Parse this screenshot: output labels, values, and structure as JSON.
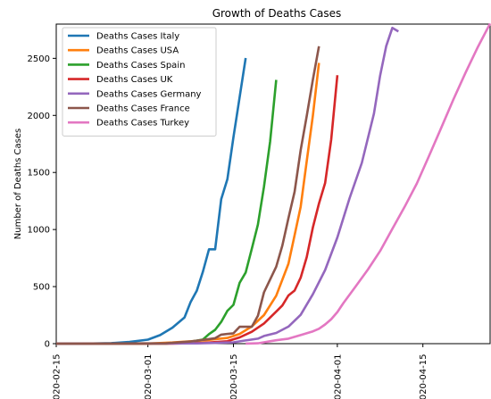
{
  "chart_data": {
    "type": "line",
    "title": "Growth of Deaths Cases",
    "ylabel": "Number of Deaths Cases",
    "xlabel": "",
    "x_type": "date",
    "x_ticks": [
      "2020-02-15",
      "2020-03-01",
      "2020-03-15",
      "2020-04-01",
      "2020-04-15"
    ],
    "x_tick_labels": [
      "2020-02-15",
      "2020-03-01",
      "2020-03-15",
      "2020-04-01",
      "2020-04-15"
    ],
    "xlim": [
      "2020-02-15",
      "2020-04-26"
    ],
    "y_ticks": [
      0,
      500,
      1000,
      1500,
      2000,
      2500
    ],
    "ylim": [
      0,
      2800
    ],
    "grid": false,
    "legend_position": "top-left",
    "series": [
      {
        "name": "Deaths Cases Italy",
        "color": "#1f77b4",
        "points": [
          [
            "2020-02-15",
            0
          ],
          [
            "2020-02-20",
            1
          ],
          [
            "2020-02-24",
            5
          ],
          [
            "2020-02-27",
            15
          ],
          [
            "2020-03-01",
            35
          ],
          [
            "2020-03-03",
            75
          ],
          [
            "2020-03-05",
            140
          ],
          [
            "2020-03-07",
            230
          ],
          [
            "2020-03-08",
            366
          ],
          [
            "2020-03-09",
            463
          ],
          [
            "2020-03-10",
            631
          ],
          [
            "2020-03-11",
            827
          ],
          [
            "2020-03-12",
            827
          ],
          [
            "2020-03-13",
            1266
          ],
          [
            "2020-03-14",
            1441
          ],
          [
            "2020-03-15",
            1809
          ],
          [
            "2020-03-16",
            2158
          ],
          [
            "2020-03-17",
            2503
          ]
        ]
      },
      {
        "name": "Deaths Cases USA",
        "color": "#ff7f0e",
        "points": [
          [
            "2020-02-15",
            0
          ],
          [
            "2020-03-01",
            1
          ],
          [
            "2020-03-05",
            10
          ],
          [
            "2020-03-10",
            28
          ],
          [
            "2020-03-14",
            50
          ],
          [
            "2020-03-16",
            85
          ],
          [
            "2020-03-18",
            150
          ],
          [
            "2020-03-20",
            250
          ],
          [
            "2020-03-22",
            420
          ],
          [
            "2020-03-24",
            700
          ],
          [
            "2020-03-25",
            950
          ],
          [
            "2020-03-26",
            1200
          ],
          [
            "2020-03-27",
            1600
          ],
          [
            "2020-03-28",
            2000
          ],
          [
            "2020-03-29",
            2460
          ]
        ]
      },
      {
        "name": "Deaths Cases Spain",
        "color": "#2ca02c",
        "points": [
          [
            "2020-02-15",
            0
          ],
          [
            "2020-03-04",
            1
          ],
          [
            "2020-03-08",
            17
          ],
          [
            "2020-03-10",
            36
          ],
          [
            "2020-03-11",
            84
          ],
          [
            "2020-03-12",
            121
          ],
          [
            "2020-03-13",
            191
          ],
          [
            "2020-03-14",
            288
          ],
          [
            "2020-03-15",
            340
          ],
          [
            "2020-03-16",
            533
          ],
          [
            "2020-03-17",
            623
          ],
          [
            "2020-03-18",
            830
          ],
          [
            "2020-03-19",
            1043
          ],
          [
            "2020-03-20",
            1375
          ],
          [
            "2020-03-21",
            1772
          ],
          [
            "2020-03-22",
            2311
          ]
        ]
      },
      {
        "name": "Deaths Cases UK",
        "color": "#d62728",
        "points": [
          [
            "2020-02-15",
            0
          ],
          [
            "2020-03-05",
            1
          ],
          [
            "2020-03-10",
            6
          ],
          [
            "2020-03-14",
            21
          ],
          [
            "2020-03-16",
            55
          ],
          [
            "2020-03-18",
            104
          ],
          [
            "2020-03-20",
            177
          ],
          [
            "2020-03-22",
            281
          ],
          [
            "2020-03-23",
            335
          ],
          [
            "2020-03-24",
            422
          ],
          [
            "2020-03-25",
            465
          ],
          [
            "2020-03-26",
            578
          ],
          [
            "2020-03-27",
            759
          ],
          [
            "2020-03-28",
            1019
          ],
          [
            "2020-03-29",
            1228
          ],
          [
            "2020-03-30",
            1408
          ],
          [
            "2020-03-31",
            1789
          ],
          [
            "2020-04-01",
            2352
          ]
        ]
      },
      {
        "name": "Deaths Cases Germany",
        "color": "#9467bd",
        "points": [
          [
            "2020-02-15",
            0
          ],
          [
            "2020-03-09",
            2
          ],
          [
            "2020-03-12",
            6
          ],
          [
            "2020-03-15",
            12
          ],
          [
            "2020-03-17",
            28
          ],
          [
            "2020-03-19",
            44
          ],
          [
            "2020-03-20",
            67
          ],
          [
            "2020-03-22",
            94
          ],
          [
            "2020-03-24",
            149
          ],
          [
            "2020-03-26",
            253
          ],
          [
            "2020-03-28",
            433
          ],
          [
            "2020-03-30",
            645
          ],
          [
            "2020-04-01",
            931
          ],
          [
            "2020-04-03",
            1275
          ],
          [
            "2020-04-05",
            1584
          ],
          [
            "2020-04-07",
            2016
          ],
          [
            "2020-04-08",
            2349
          ],
          [
            "2020-04-09",
            2607
          ],
          [
            "2020-04-10",
            2767
          ],
          [
            "2020-04-11",
            2736
          ]
        ]
      },
      {
        "name": "Deaths Cases France",
        "color": "#8c564b",
        "points": [
          [
            "2020-02-15",
            0
          ],
          [
            "2020-02-29",
            2
          ],
          [
            "2020-03-04",
            4
          ],
          [
            "2020-03-08",
            19
          ],
          [
            "2020-03-10",
            33
          ],
          [
            "2020-03-12",
            48
          ],
          [
            "2020-03-13",
            79
          ],
          [
            "2020-03-15",
            91
          ],
          [
            "2020-03-16",
            148
          ],
          [
            "2020-03-18",
            148
          ],
          [
            "2020-03-19",
            244
          ],
          [
            "2020-03-20",
            450
          ],
          [
            "2020-03-21",
            562
          ],
          [
            "2020-03-22",
            674
          ],
          [
            "2020-03-23",
            860
          ],
          [
            "2020-03-24",
            1100
          ],
          [
            "2020-03-25",
            1331
          ],
          [
            "2020-03-26",
            1696
          ],
          [
            "2020-03-27",
            1995
          ],
          [
            "2020-03-28",
            2314
          ],
          [
            "2020-03-29",
            2606
          ]
        ]
      },
      {
        "name": "Deaths Cases Turkey",
        "color": "#e377c2",
        "points": [
          [
            "2020-03-17",
            1
          ],
          [
            "2020-03-19",
            3
          ],
          [
            "2020-03-21",
            21
          ],
          [
            "2020-03-22",
            30
          ],
          [
            "2020-03-24",
            44
          ],
          [
            "2020-03-26",
            75
          ],
          [
            "2020-03-28",
            108
          ],
          [
            "2020-03-29",
            131
          ],
          [
            "2020-03-30",
            168
          ],
          [
            "2020-03-31",
            214
          ],
          [
            "2020-04-01",
            277
          ],
          [
            "2020-04-02",
            356
          ],
          [
            "2020-04-04",
            501
          ],
          [
            "2020-04-06",
            649
          ],
          [
            "2020-04-08",
            812
          ],
          [
            "2020-04-10",
            1006
          ],
          [
            "2020-04-12",
            1198
          ],
          [
            "2020-04-14",
            1403
          ],
          [
            "2020-04-16",
            1643
          ],
          [
            "2020-04-18",
            1890
          ],
          [
            "2020-04-20",
            2140
          ],
          [
            "2020-04-22",
            2376
          ],
          [
            "2020-04-24",
            2600
          ],
          [
            "2020-04-26",
            2805
          ]
        ]
      }
    ]
  }
}
